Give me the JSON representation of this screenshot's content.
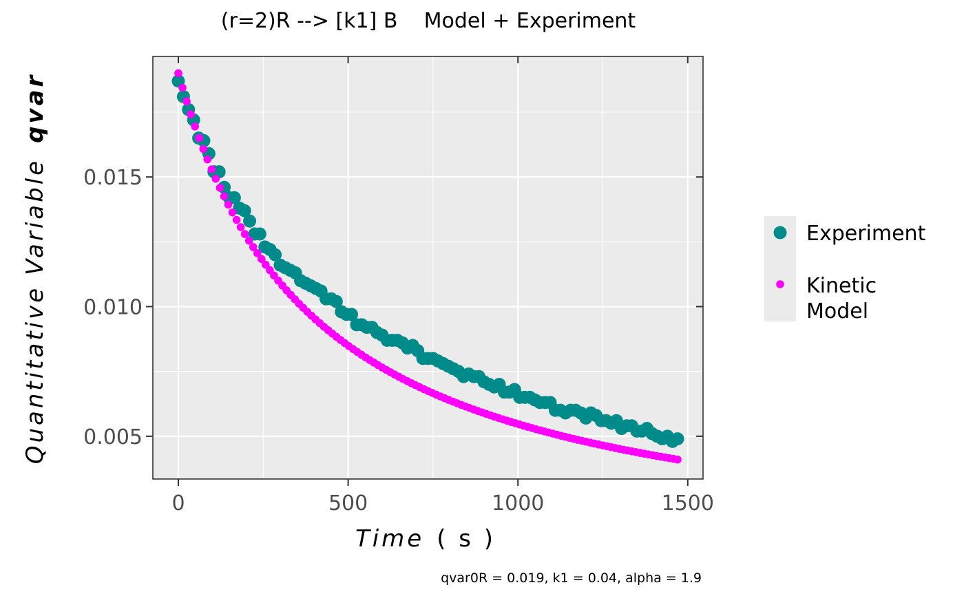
{
  "chart_data": {
    "type": "scatter",
    "title": "(r=2)R --> [k1] B    Model + Experiment",
    "xlabel": "Time",
    "xlabel_unit": "( s )",
    "ylabel": "Quantitative Variable",
    "ylabel_var": "qvar",
    "caption": "qvar0R = 0.019, k1 = 0.04, alpha = 1.9",
    "xlim": [
      -75,
      1545
    ],
    "ylim": [
      0.00335,
      0.01965
    ],
    "xticks": [
      0,
      500,
      1000,
      1500
    ],
    "xtick_labels": [
      "0",
      "500",
      "1000",
      "1500"
    ],
    "yticks": [
      0.005,
      0.01,
      0.015
    ],
    "ytick_labels": [
      "0.005",
      "0.010",
      "0.015"
    ],
    "grid": true,
    "legend_position": "right",
    "series": [
      {
        "name": "Experiment",
        "color": "#008B8B",
        "marker": "large-circle",
        "x": [
          0,
          15,
          30,
          45,
          60,
          75,
          90,
          105,
          120,
          135,
          150,
          165,
          180,
          195,
          210,
          225,
          240,
          255,
          270,
          285,
          300,
          315,
          330,
          345,
          360,
          375,
          390,
          405,
          420,
          435,
          450,
          465,
          480,
          495,
          510,
          525,
          540,
          555,
          570,
          585,
          600,
          615,
          630,
          645,
          660,
          675,
          690,
          705,
          720,
          735,
          750,
          765,
          780,
          795,
          810,
          825,
          840,
          855,
          870,
          885,
          900,
          915,
          930,
          945,
          960,
          975,
          990,
          1005,
          1020,
          1035,
          1050,
          1065,
          1080,
          1095,
          1110,
          1125,
          1140,
          1155,
          1170,
          1185,
          1200,
          1215,
          1230,
          1245,
          1260,
          1275,
          1290,
          1305,
          1320,
          1335,
          1350,
          1365,
          1380,
          1395,
          1410,
          1425,
          1440,
          1455,
          1470
        ],
        "y": [
          0.0187,
          0.0181,
          0.0176,
          0.0172,
          0.0165,
          0.0164,
          0.0159,
          0.0152,
          0.0152,
          0.0146,
          0.0142,
          0.0142,
          0.0138,
          0.0137,
          0.0133,
          0.0128,
          0.0128,
          0.0123,
          0.0122,
          0.012,
          0.0116,
          0.0115,
          0.0114,
          0.0113,
          0.011,
          0.0109,
          0.0108,
          0.0107,
          0.0106,
          0.0103,
          0.0103,
          0.0102,
          0.0098,
          0.0097,
          0.0097,
          0.0093,
          0.0093,
          0.0092,
          0.0092,
          0.009,
          0.0089,
          0.0087,
          0.0087,
          0.0087,
          0.0086,
          0.0084,
          0.0085,
          0.0083,
          0.008,
          0.008,
          0.008,
          0.0079,
          0.0078,
          0.0077,
          0.0076,
          0.0075,
          0.0073,
          0.0074,
          0.0073,
          0.0073,
          0.0071,
          0.007,
          0.0069,
          0.007,
          0.0067,
          0.0067,
          0.0068,
          0.0065,
          0.0065,
          0.0065,
          0.0064,
          0.0063,
          0.0063,
          0.0063,
          0.006,
          0.006,
          0.0059,
          0.006,
          0.006,
          0.0059,
          0.0057,
          0.0059,
          0.0058,
          0.0056,
          0.0056,
          0.0055,
          0.0056,
          0.0053,
          0.0054,
          0.0054,
          0.0052,
          0.0052,
          0.0053,
          0.0051,
          0.005,
          0.0049,
          0.005,
          0.0048,
          0.0049
        ]
      },
      {
        "name": "Kinetic Model",
        "legend_lines": [
          "Kinetic",
          "Model"
        ],
        "color": "#FF00FF",
        "marker": "small-circle",
        "model": {
          "qvar0R": 0.019,
          "k1": 0.04,
          "alpha": 1.9,
          "order": 2,
          "x_start": 0,
          "x_end": 1470,
          "x_step": 12.25
        }
      }
    ]
  }
}
